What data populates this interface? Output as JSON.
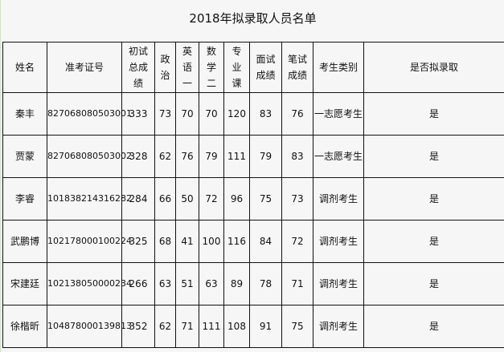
{
  "title": "2018年拟录取人员名单",
  "headers": [
    "姓名",
    "准考证号",
    "初试总成绩",
    "政治",
    "英语一",
    "数学二",
    "专业课",
    "面试成绩",
    "笔试成绩",
    "考生类别",
    "是否拟录取"
  ],
  "rows": [
    [
      "秦丰",
      "827068080503001",
      "333",
      "73",
      "70",
      "70",
      "120",
      "83",
      "76",
      "一志愿考生",
      "是"
    ],
    [
      "贾蒙",
      "827068080503002",
      "328",
      "62",
      "76",
      "79",
      "111",
      "79",
      "83",
      "一志愿考生",
      "是"
    ],
    [
      "李睿",
      "101838214316282",
      "284",
      "66",
      "50",
      "72",
      "96",
      "75",
      "73",
      "调剂考生",
      "是"
    ],
    [
      "武鹏博",
      "102178000100224",
      "325",
      "68",
      "41",
      "100",
      "116",
      "84",
      "72",
      "调剂考生",
      "是"
    ],
    [
      "宋建廷",
      "102138050000234",
      "266",
      "63",
      "51",
      "63",
      "89",
      "78",
      "71",
      "调剂考生",
      "是"
    ],
    [
      "徐楷昕",
      "104878000139813",
      "352",
      "62",
      "71",
      "111",
      "108",
      "91",
      "75",
      "调剂考生",
      "是"
    ]
  ]
}
